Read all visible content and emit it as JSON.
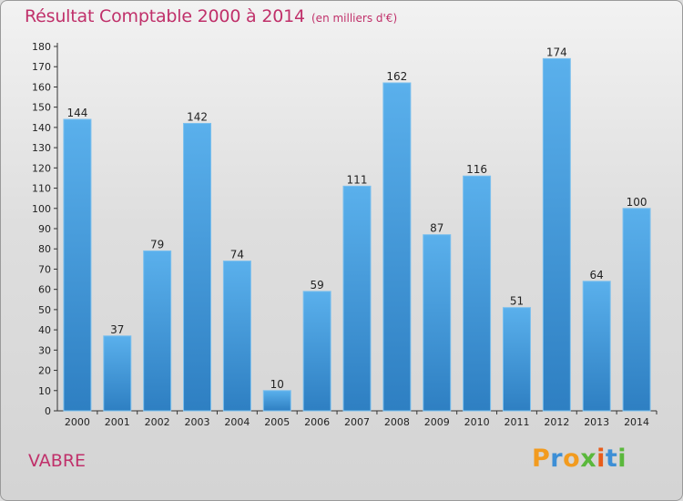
{
  "title": "Résultat Comptable 2000 à 2014",
  "subtitle": "(en milliers d'€)",
  "commune": "VABRE",
  "logo": {
    "text": "Proxiti",
    "letter_colors": [
      "#f29b1f",
      "#3d8fd6",
      "#f29b1f",
      "#5ab83c",
      "#e85c1a",
      "#3d8fd6",
      "#5ab83c"
    ]
  },
  "colors": {
    "bar_dark": "#2e7fc2",
    "bar_light": "#5ab0ec",
    "accent": "#c0306a"
  },
  "chart_data": {
    "type": "bar",
    "title": "Résultat Comptable 2000 à 2014",
    "subtitle": "(en milliers d'€)",
    "categories": [
      "2000",
      "2001",
      "2002",
      "2003",
      "2004",
      "2005",
      "2006",
      "2007",
      "2008",
      "2009",
      "2010",
      "2011",
      "2012",
      "2013",
      "2014"
    ],
    "values": [
      144,
      37,
      79,
      142,
      74,
      10,
      59,
      111,
      162,
      87,
      116,
      51,
      174,
      64,
      100
    ],
    "ylim": [
      0,
      180
    ],
    "yticks": [
      0,
      10,
      20,
      30,
      40,
      50,
      60,
      70,
      80,
      90,
      100,
      110,
      120,
      130,
      140,
      150,
      160,
      170,
      180
    ],
    "grid": false,
    "data_labels": true
  }
}
